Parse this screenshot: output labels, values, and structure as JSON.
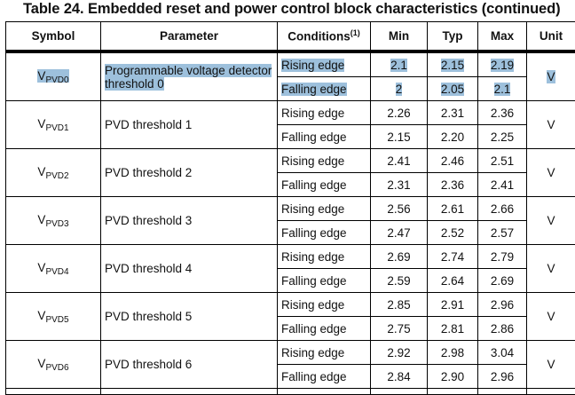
{
  "title": "Table 24. Embedded reset and power control block characteristics (continued)",
  "headers": {
    "symbol": "Symbol",
    "parameter": "Parameter",
    "conditions": "Conditions",
    "conditions_note": "(1)",
    "min": "Min",
    "typ": "Typ",
    "max": "Max",
    "unit": "Unit"
  },
  "highlight_color": "#9dc0dc",
  "rows": [
    {
      "sym": "V",
      "sub": "PVD0",
      "param": "Programmable voltage detector threshold 0",
      "unit": "V",
      "rise": {
        "cond": "Rising edge",
        "min": "2.1",
        "typ": "2.15",
        "max": "2.19"
      },
      "fall": {
        "cond": "Falling edge",
        "min": "2",
        "typ": "2.05",
        "max": "2.1"
      }
    },
    {
      "sym": "V",
      "sub": "PVD1",
      "param": "PVD threshold 1",
      "unit": "V",
      "rise": {
        "cond": "Rising edge",
        "min": "2.26",
        "typ": "2.31",
        "max": "2.36"
      },
      "fall": {
        "cond": "Falling edge",
        "min": "2.15",
        "typ": "2.20",
        "max": "2.25"
      }
    },
    {
      "sym": "V",
      "sub": "PVD2",
      "param": "PVD threshold 2",
      "unit": "V",
      "rise": {
        "cond": "Rising edge",
        "min": "2.41",
        "typ": "2.46",
        "max": "2.51"
      },
      "fall": {
        "cond": "Falling edge",
        "min": "2.31",
        "typ": "2.36",
        "max": "2.41"
      }
    },
    {
      "sym": "V",
      "sub": "PVD3",
      "param": "PVD threshold 3",
      "unit": "V",
      "rise": {
        "cond": "Rising edge",
        "min": "2.56",
        "typ": "2.61",
        "max": "2.66"
      },
      "fall": {
        "cond": "Falling edge",
        "min": "2.47",
        "typ": "2.52",
        "max": "2.57"
      }
    },
    {
      "sym": "V",
      "sub": "PVD4",
      "param": "PVD threshold 4",
      "unit": "V",
      "rise": {
        "cond": "Rising edge",
        "min": "2.69",
        "typ": "2.74",
        "max": "2.79"
      },
      "fall": {
        "cond": "Falling edge",
        "min": "2.59",
        "typ": "2.64",
        "max": "2.69"
      }
    },
    {
      "sym": "V",
      "sub": "PVD5",
      "param": "PVD threshold 5",
      "unit": "V",
      "rise": {
        "cond": "Rising edge",
        "min": "2.85",
        "typ": "2.91",
        "max": "2.96"
      },
      "fall": {
        "cond": "Falling edge",
        "min": "2.75",
        "typ": "2.81",
        "max": "2.86"
      }
    },
    {
      "sym": "V",
      "sub": "PVD6",
      "param": "PVD threshold 6",
      "unit": "V",
      "rise": {
        "cond": "Rising edge",
        "min": "2.92",
        "typ": "2.98",
        "max": "3.04"
      },
      "fall": {
        "cond": "Falling edge",
        "min": "2.84",
        "typ": "2.90",
        "max": "2.96"
      }
    }
  ]
}
